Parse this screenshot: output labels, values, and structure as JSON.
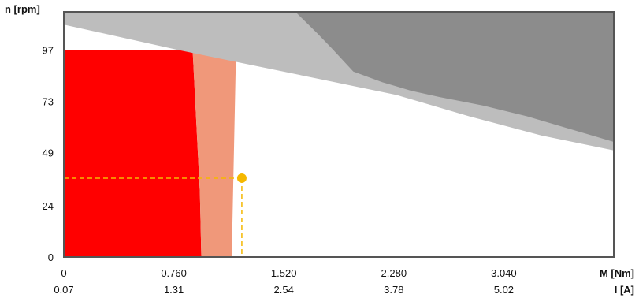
{
  "chart_data": {
    "type": "area",
    "ylabel": "n [rpm]",
    "xlabel_primary": "M [Nm]",
    "xlabel_secondary": "I [A]",
    "xlim": [
      0,
      3.8
    ],
    "ylim": [
      0,
      115
    ],
    "x_ticks": [
      0,
      0.76,
      1.52,
      2.28,
      3.04
    ],
    "x_tick_labels": [
      "0",
      "0.760",
      "1.520",
      "2.280",
      "3.040"
    ],
    "x2_tick_labels": [
      "0.07",
      "1.31",
      "2.54",
      "3.78",
      "5.02"
    ],
    "y_ticks": [
      0,
      24,
      49,
      73,
      97
    ],
    "y_tick_labels": [
      "0",
      "24",
      "49",
      "73",
      "97"
    ],
    "grid": false,
    "colors": {
      "continuous": "#ff0000",
      "intermittent": "#f0987a",
      "limit_light": "#bdbdbd",
      "limit_dark": "#8c8c8c",
      "operating_point": "#f5b800",
      "frame": "#555555"
    },
    "regions": [
      {
        "id": "continuous-region",
        "color": "continuous",
        "points": [
          [
            0,
            0
          ],
          [
            0.95,
            0
          ],
          [
            0.94,
            30
          ],
          [
            0.89,
            97
          ],
          [
            0,
            97
          ]
        ]
      },
      {
        "id": "intermittent-region",
        "color": "intermittent",
        "points": [
          [
            0.95,
            0
          ],
          [
            1.16,
            0
          ],
          [
            1.19,
            97
          ],
          [
            0.89,
            97
          ],
          [
            0.94,
            30
          ]
        ]
      },
      {
        "id": "speed-limit-region",
        "color": "limit_light",
        "points": [
          [
            0,
            115
          ],
          [
            3.8,
            115
          ],
          [
            3.8,
            50
          ],
          [
            3.3,
            57
          ],
          [
            2.8,
            66
          ],
          [
            2.3,
            76
          ],
          [
            1.8,
            83
          ],
          [
            1.3,
            90
          ],
          [
            0.8,
            97
          ],
          [
            0.4,
            103
          ],
          [
            0,
            109
          ]
        ]
      },
      {
        "id": "current-limit-region",
        "color": "limit_dark",
        "points": [
          [
            1.6,
            115
          ],
          [
            3.8,
            115
          ],
          [
            3.8,
            54
          ],
          [
            3.5,
            60
          ],
          [
            3.2,
            66
          ],
          [
            2.9,
            71
          ],
          [
            2.6,
            75
          ],
          [
            2.4,
            78
          ],
          [
            2.2,
            82
          ],
          [
            2.0,
            87
          ],
          [
            1.85,
            98
          ],
          [
            1.75,
            105
          ],
          [
            1.6,
            115
          ]
        ]
      }
    ],
    "operating_point": {
      "x": 1.23,
      "y": 37
    }
  }
}
